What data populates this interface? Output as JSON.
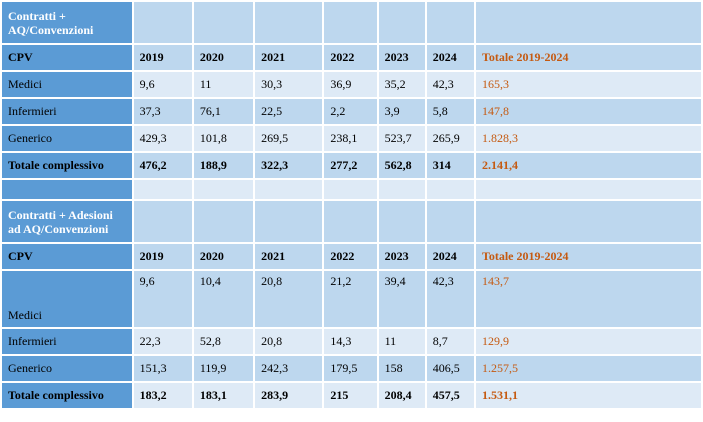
{
  "years": [
    "2019",
    "2020",
    "2021",
    "2022",
    "2023",
    "2024"
  ],
  "total_label": "Totale 2019-2024",
  "cpv_label": "CPV",
  "section1": {
    "title": "Contratti + AQ/Convenzioni",
    "rows": [
      {
        "label": "Medici",
        "values": [
          "9,6",
          "11",
          "30,3",
          "36,9",
          "35,2",
          "42,3"
        ],
        "total": "165,3"
      },
      {
        "label": "Infermieri",
        "values": [
          "37,3",
          "76,1",
          "22,5",
          "2,2",
          "3,9",
          "5,8"
        ],
        "total": "147,8"
      },
      {
        "label": "Generico",
        "values": [
          "429,3",
          "101,8",
          "269,5",
          "238,1",
          "523,7",
          "265,9"
        ],
        "total": "1.828,3"
      }
    ],
    "totals": {
      "label": "Totale complessivo",
      "values": [
        "476,2",
        "188,9",
        "322,3",
        "277,2",
        "562,8",
        "314"
      ],
      "total": "2.141,4"
    }
  },
  "section2": {
    "title": "Contratti + Adesioni ad AQ/Convenzioni",
    "rows": [
      {
        "label": "Medici",
        "values": [
          "9,6",
          "10,4",
          "20,8",
          "21,2",
          "39,4",
          "42,3"
        ],
        "total": "143,7"
      },
      {
        "label": "Infermieri",
        "values": [
          "22,3",
          "52,8",
          "20,8",
          "14,3",
          "11",
          "8,7"
        ],
        "total": "129,9"
      },
      {
        "label": "Generico",
        "values": [
          "151,3",
          "119,9",
          "242,3",
          "179,5",
          "158",
          "406,5"
        ],
        "total": "1.257,5"
      }
    ],
    "totals": {
      "label": "Totale complessivo",
      "values": [
        "183,2",
        "183,1",
        "283,9",
        "215",
        "208,4",
        "457,5"
      ],
      "total": "1.531,1"
    }
  },
  "colors": {
    "header": "#5b9bd5",
    "cell": "#bdd7ee",
    "cell_alt": "#deeaf6",
    "total_text": "#c55a11"
  }
}
